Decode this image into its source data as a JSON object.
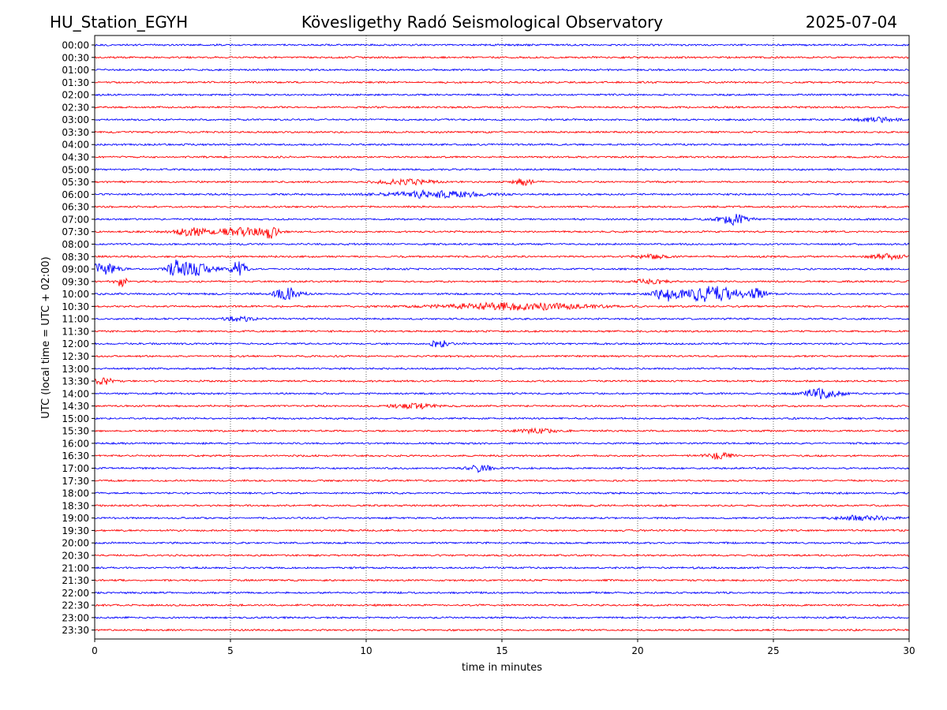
{
  "header": {
    "station": "HU_Station_EGYH",
    "observatory": "Kövesligethy Radó Seismological Observatory",
    "date": "2025-07-04"
  },
  "chart_data": {
    "type": "line",
    "title": "Kövesligethy Radó Seismological Observatory",
    "xlabel": "time in minutes",
    "ylabel": "UTC (local time = UTC + 02:00)",
    "xlim": [
      0,
      30
    ],
    "x_ticks": [
      "0",
      "5",
      "10",
      "15",
      "20",
      "25",
      "30"
    ],
    "grid": "vertical-dotted",
    "rows": [
      "00:00",
      "00:30",
      "01:00",
      "01:30",
      "02:00",
      "02:30",
      "03:00",
      "03:30",
      "04:00",
      "04:30",
      "05:00",
      "05:30",
      "06:00",
      "06:30",
      "07:00",
      "07:30",
      "08:00",
      "08:30",
      "09:00",
      "09:30",
      "10:00",
      "10:30",
      "11:00",
      "11:30",
      "12:00",
      "12:30",
      "13:00",
      "13:30",
      "14:00",
      "14:30",
      "15:00",
      "15:30",
      "16:00",
      "16:30",
      "17:00",
      "17:30",
      "18:00",
      "18:30",
      "19:00",
      "19:30",
      "20:00",
      "20:30",
      "21:00",
      "21:30",
      "22:00",
      "22:30",
      "23:00",
      "23:30"
    ],
    "row_colors": [
      "#0000ff",
      "#ff0000"
    ],
    "bursts": [
      {
        "row": "03:00",
        "minute": 28.8,
        "width": 1.2,
        "amplitude": 0.3
      },
      {
        "row": "05:30",
        "minute": 11.5,
        "width": 1.5,
        "amplitude": 0.35
      },
      {
        "row": "05:30",
        "minute": 15.8,
        "width": 0.5,
        "amplitude": 0.45
      },
      {
        "row": "06:00",
        "minute": 12.5,
        "width": 2.5,
        "amplitude": 0.5
      },
      {
        "row": "07:00",
        "minute": 23.5,
        "width": 0.8,
        "amplitude": 0.75
      },
      {
        "row": "07:30",
        "minute": 3.5,
        "width": 1.0,
        "amplitude": 0.5
      },
      {
        "row": "07:30",
        "minute": 5.5,
        "width": 1.6,
        "amplitude": 0.55
      },
      {
        "row": "07:30",
        "minute": 6.4,
        "width": 0.4,
        "amplitude": 0.8
      },
      {
        "row": "08:30",
        "minute": 20.5,
        "width": 0.8,
        "amplitude": 0.35
      },
      {
        "row": "08:30",
        "minute": 29.2,
        "width": 0.9,
        "amplitude": 0.4
      },
      {
        "row": "09:00",
        "minute": 0.3,
        "width": 0.8,
        "amplitude": 0.9
      },
      {
        "row": "09:00",
        "minute": 3.0,
        "width": 0.5,
        "amplitude": 1.1
      },
      {
        "row": "09:00",
        "minute": 3.8,
        "width": 0.9,
        "amplitude": 0.9
      },
      {
        "row": "09:00",
        "minute": 5.3,
        "width": 0.4,
        "amplitude": 1.1
      },
      {
        "row": "09:30",
        "minute": 1.0,
        "width": 0.3,
        "amplitude": 0.8
      },
      {
        "row": "09:30",
        "minute": 20.5,
        "width": 1.0,
        "amplitude": 0.3
      },
      {
        "row": "10:00",
        "minute": 7.1,
        "width": 0.7,
        "amplitude": 0.85
      },
      {
        "row": "10:00",
        "minute": 21.0,
        "width": 0.5,
        "amplitude": 0.9
      },
      {
        "row": "10:00",
        "minute": 22.6,
        "width": 1.8,
        "amplitude": 1.1
      },
      {
        "row": "10:00",
        "minute": 24.4,
        "width": 0.5,
        "amplitude": 0.7
      },
      {
        "row": "10:30",
        "minute": 15.5,
        "width": 4.0,
        "amplitude": 0.5
      },
      {
        "row": "11:00",
        "minute": 5.3,
        "width": 0.8,
        "amplitude": 0.35
      },
      {
        "row": "12:00",
        "minute": 12.7,
        "width": 0.5,
        "amplitude": 0.5
      },
      {
        "row": "13:30",
        "minute": 0.3,
        "width": 0.6,
        "amplitude": 0.5
      },
      {
        "row": "14:00",
        "minute": 26.8,
        "width": 1.0,
        "amplitude": 0.75
      },
      {
        "row": "14:30",
        "minute": 11.8,
        "width": 1.2,
        "amplitude": 0.35
      },
      {
        "row": "15:30",
        "minute": 16.3,
        "width": 1.0,
        "amplitude": 0.3
      },
      {
        "row": "16:30",
        "minute": 23.0,
        "width": 0.8,
        "amplitude": 0.4
      },
      {
        "row": "17:00",
        "minute": 14.2,
        "width": 0.6,
        "amplitude": 0.55
      },
      {
        "row": "19:00",
        "minute": 28.3,
        "width": 1.5,
        "amplitude": 0.35
      }
    ]
  }
}
